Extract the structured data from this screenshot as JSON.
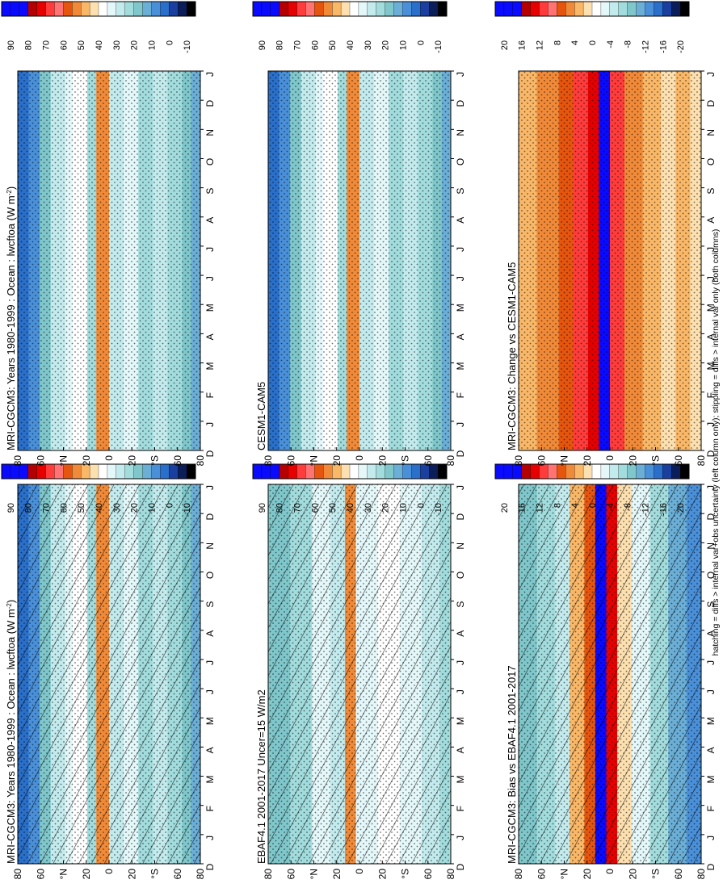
{
  "footer_note": "hatching = diffs > internal var+obs uncertainty (left column only); stippling = diffs > internal var only (both columns)",
  "colors": {
    "abs_scale": [
      "#0a0aff",
      "#0a0aff",
      "#0a0aff",
      "#b40000",
      "#e60000",
      "#ff3c3c",
      "#ff7373",
      "#e6550d",
      "#f08a38",
      "#f9b768",
      "#fde0b0",
      "#ffffff",
      "#e4f7f9",
      "#c3ebee",
      "#a2dcdd",
      "#7fc7cb",
      "#6baed6",
      "#4a90d9",
      "#2a6fc9",
      "#1a3f9e",
      "#0b1e5a",
      "#000000"
    ],
    "diff_scale": [
      "#0a0aff",
      "#0a0aff",
      "#0a0aff",
      "#b40000",
      "#e60000",
      "#ff3c3c",
      "#ff7373",
      "#e6550d",
      "#f08a38",
      "#f9b768",
      "#fde0b0",
      "#ffffff",
      "#e4f7f9",
      "#c3ebee",
      "#a2dcdd",
      "#7fc7cb",
      "#6baed6",
      "#4a90d9",
      "#2a6fc9",
      "#1a3f9e",
      "#0b1e5a",
      "#000000"
    ]
  },
  "chart_data": [
    {
      "type": "heatmap",
      "id": "p1",
      "title": "MRI-CGCM3: Years 1980-1999 : Ocean : lwcftoa (W m",
      "title_sup": "-2",
      "title_end": ")",
      "months": [
        "J",
        "F",
        "M",
        "A",
        "M",
        "J",
        "J",
        "A",
        "S",
        "O",
        "N",
        "D",
        "J"
      ],
      "month_start": "D",
      "lat_ticks": [
        "80",
        "60",
        "°N",
        "20",
        "0",
        "20",
        "°S",
        "60",
        "80"
      ],
      "colorbar_labels": [
        "90",
        "80",
        "70",
        "60",
        "50",
        "40",
        "30",
        "20",
        "10",
        "0",
        "-10"
      ],
      "hatching": true,
      "stippling": true
    },
    {
      "type": "heatmap",
      "id": "p2",
      "title": "MRI-CGCM3: Years 1980-1999 : Ocean : lwcftoa (W m",
      "title_sup": "-2",
      "title_end": ")",
      "months": [
        "J",
        "F",
        "M",
        "A",
        "M",
        "J",
        "J",
        "A",
        "S",
        "O",
        "N",
        "D",
        "J"
      ],
      "month_start": "D",
      "lat_ticks": [
        "80",
        "60",
        "°N",
        "20",
        "0",
        "20",
        "°S",
        "60",
        "80"
      ],
      "colorbar_labels": [
        "90",
        "80",
        "70",
        "60",
        "50",
        "40",
        "30",
        "20",
        "10",
        "0",
        "-10"
      ],
      "hatching": false,
      "stippling": true
    },
    {
      "type": "heatmap",
      "id": "p3",
      "title": "EBAF4.1 2001-2017 Uncer=15 W/m2",
      "months": [
        "J",
        "F",
        "M",
        "A",
        "M",
        "J",
        "J",
        "A",
        "S",
        "O",
        "N",
        "D",
        "J"
      ],
      "month_start": "D",
      "lat_ticks": [
        "80",
        "60",
        "°N",
        "20",
        "0",
        "20",
        "°S",
        "60",
        "80"
      ],
      "colorbar_labels": [
        "90",
        "80",
        "70",
        "60",
        "50",
        "40",
        "30",
        "20",
        "10",
        "0",
        "-10"
      ],
      "hatching": true,
      "stippling": true
    },
    {
      "type": "heatmap",
      "id": "p4",
      "title": "CESM1-CAM5",
      "months": [
        "J",
        "F",
        "M",
        "A",
        "M",
        "J",
        "J",
        "A",
        "S",
        "O",
        "N",
        "D",
        "J"
      ],
      "month_start": "D",
      "lat_ticks": [
        "80",
        "60",
        "°N",
        "20",
        "0",
        "20",
        "°S",
        "60",
        "80"
      ],
      "colorbar_labels": [
        "90",
        "80",
        "70",
        "60",
        "50",
        "40",
        "30",
        "20",
        "10",
        "0",
        "-10"
      ],
      "hatching": false,
      "stippling": true
    },
    {
      "type": "heatmap",
      "id": "p5",
      "title": "MRI-CGCM3: Bias vs EBAF4.1 2001-2017",
      "months": [
        "J",
        "F",
        "M",
        "A",
        "M",
        "J",
        "J",
        "A",
        "S",
        "O",
        "N",
        "D",
        "J"
      ],
      "month_start": "D",
      "lat_ticks": [
        "80",
        "60",
        "°N",
        "20",
        "0",
        "20",
        "°S",
        "60",
        "80"
      ],
      "colorbar_labels": [
        "20",
        "16",
        "12",
        "8",
        "4",
        "0",
        "-4",
        "-8",
        "-12",
        "-16",
        "-20"
      ],
      "hatching": true,
      "stippling": true
    },
    {
      "type": "heatmap",
      "id": "p6",
      "title": "MRI-CGCM3: Change vs CESM1-CAM5",
      "months": [
        "J",
        "F",
        "M",
        "A",
        "M",
        "J",
        "J",
        "A",
        "S",
        "O",
        "N",
        "D",
        "J"
      ],
      "month_start": "D",
      "lat_ticks": [
        "80",
        "60",
        "°N",
        "20",
        "0",
        "20",
        "°S",
        "60",
        "80"
      ],
      "colorbar_labels": [
        "20",
        "16",
        "12",
        "8",
        "4",
        "0",
        "-4",
        "-8",
        "-12",
        "-16",
        "-20"
      ],
      "hatching": false,
      "stippling": true
    }
  ]
}
